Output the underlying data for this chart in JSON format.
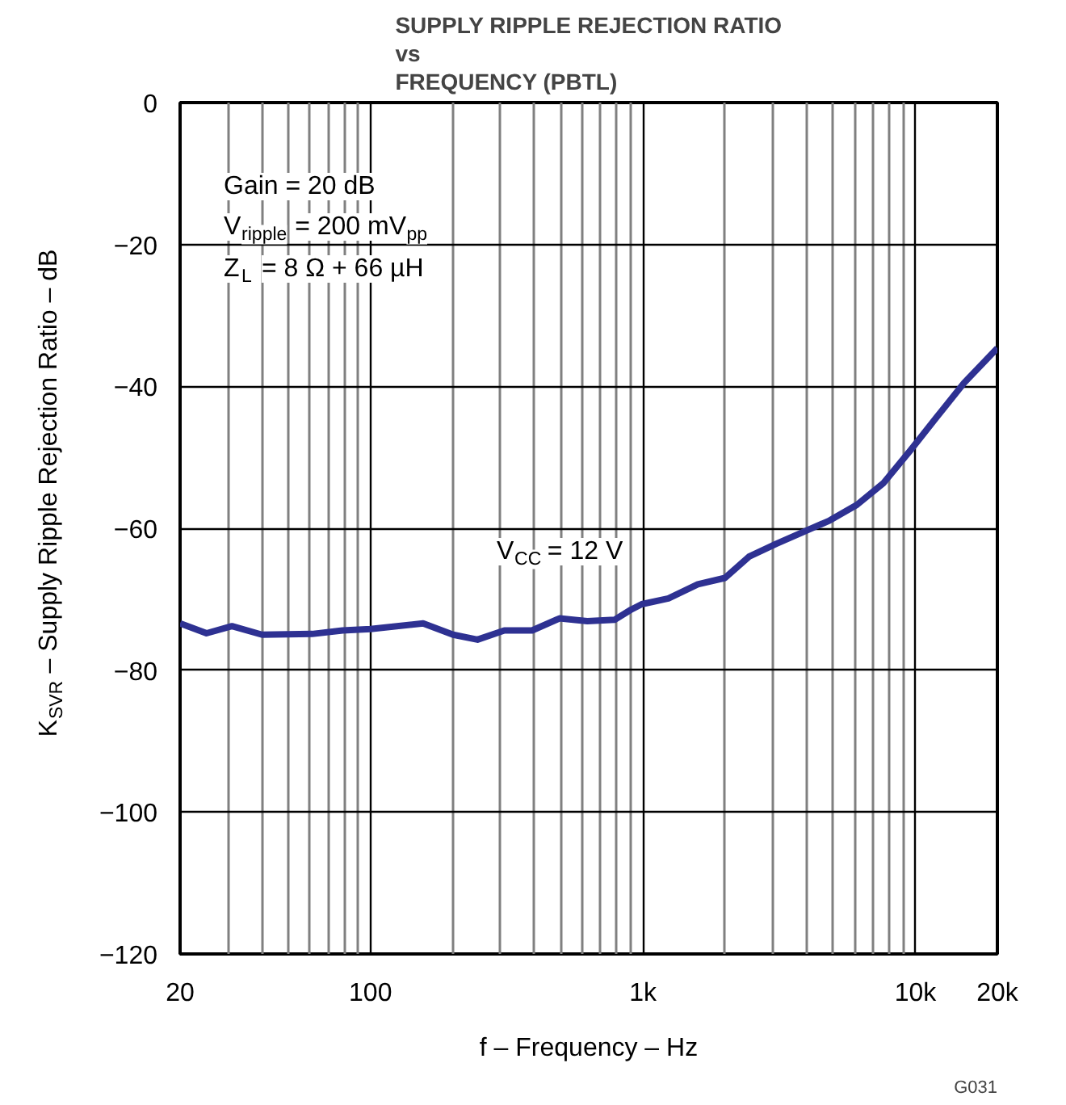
{
  "chart_data": {
    "type": "line",
    "title": "SUPPLY RIPPLE REJECTION RATIO\nvs\nFREQUENCY (PBTL)",
    "xlabel": "f – Frequency – Hz",
    "ylabel": "K$_{SVR}$ – Supply Ripple Rejection Ratio – dB",
    "log": "x",
    "grid": true,
    "xlim": [
      20,
      20000
    ],
    "xticks": [
      {
        "value": 20,
        "label": "20"
      },
      {
        "value": 100,
        "label": "100"
      },
      {
        "value": 1000,
        "label": "1k"
      },
      {
        "value": 10000,
        "label": "10k"
      },
      {
        "value": 20000,
        "label": "20k"
      }
    ],
    "ylim": [
      -120,
      0
    ],
    "yticks": [
      0,
      {
        "value": -20,
        "label": "−20"
      },
      {
        "value": -40,
        "label": "−40"
      },
      {
        "value": -60,
        "label": "−60"
      },
      {
        "value": -80,
        "label": "−80"
      },
      {
        "value": -100,
        "label": "−100"
      },
      {
        "value": -120,
        "label": "−120"
      }
    ],
    "annotations": [
      "Gain = 20 dB",
      "V$_{ripple}$ = 200 mV$_{pp}$",
      "Z$_{L}$ = 8 Ω + 66 µH",
      "G031"
    ],
    "series": [
      {
        "name": "V$_{CC}$ = 12 V",
        "color": "#2e3192",
        "x": [
          20,
          25,
          31,
          40,
          61,
          79,
          100,
          156,
          201,
          247,
          310,
          392,
          494,
          625,
          787,
          902,
          990,
          1240,
          1590,
          2000,
          2450,
          3080,
          4850,
          6100,
          7650,
          9600,
          12000,
          15100,
          20000
        ],
        "values": [
          -73.4,
          -74.8,
          -73.8,
          -75,
          -74.9,
          -74.4,
          -74.2,
          -73.4,
          -75,
          -75.7,
          -74.4,
          -74.4,
          -72.7,
          -73.1,
          -72.9,
          -71.5,
          -70.7,
          -69.9,
          -67.9,
          -67,
          -64,
          -62.2,
          -58.9,
          -56.7,
          -53.6,
          -49,
          -44.3,
          -39.5,
          -34.6
        ]
      }
    ]
  }
}
